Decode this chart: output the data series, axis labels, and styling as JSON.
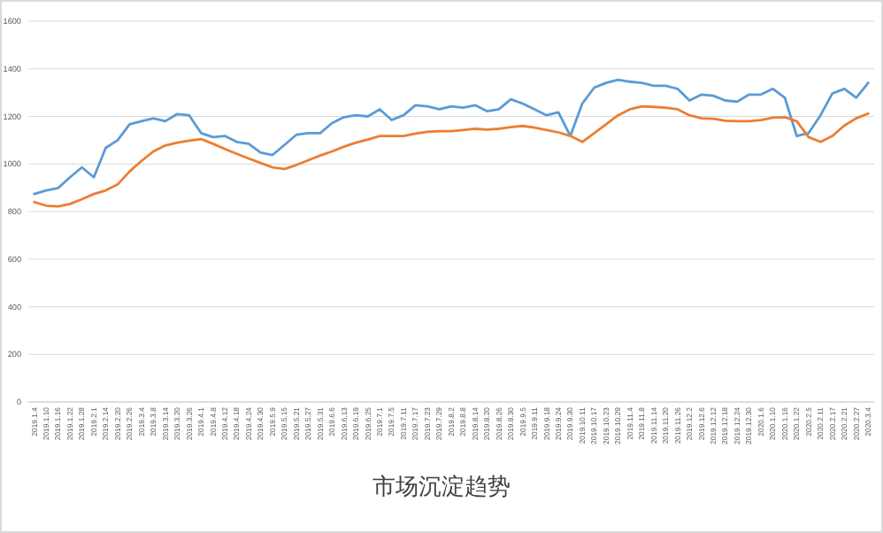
{
  "chart_data": {
    "type": "line",
    "title": "市场沉淀趋势",
    "categories": [
      "2019.1.4",
      "2019.1.10",
      "2019.1.16",
      "2019.1.22",
      "2019.1.28",
      "2019.2.1",
      "2019.2.14",
      "2019.2.20",
      "2019.2.26",
      "2019.3.4",
      "2019.3.8",
      "2019.3.14",
      "2019.3.20",
      "2019.3.26",
      "2019.4.1",
      "2019.4.8",
      "2019.4.12",
      "2019.4.18",
      "2019.4.24",
      "2019.4.30",
      "2019.5.9",
      "2019.5.15",
      "2019.5.21",
      "2019.5.27",
      "2019.5.31",
      "2019.6.6",
      "2019.6.13",
      "2019.6.19",
      "2019.6.25",
      "2019.7.1",
      "2019.7.5",
      "2019.7.11",
      "2019.7.17",
      "2019.7.23",
      "2019.7.29",
      "2019.8.2",
      "2019.8.8",
      "2019.8.14",
      "2019.8.20",
      "2019.8.26",
      "2019.8.30",
      "2019.9.5",
      "2019.9.11",
      "2019.9.18",
      "2019.9.24",
      "2019.9.30",
      "2019.10.11",
      "2019.10.17",
      "2019.10.23",
      "2019.10.29",
      "2019.11.4",
      "2019.11.8",
      "2019.11.14",
      "2019.11.20",
      "2019.11.26",
      "2019.12.2",
      "2019.12.6",
      "2019.12.12",
      "2019.12.18",
      "2019.12.24",
      "2019.12.30",
      "2020.1.6",
      "2020.1.10",
      "2020.1.16",
      "2020.1.22",
      "2020.2.5",
      "2020.2.11",
      "2020.2.17",
      "2020.2.21",
      "2020.2.27",
      "2020.3.4"
    ],
    "series": [
      {
        "color": "#5b9bd5",
        "values": [
          874,
          889,
          899,
          944,
          986,
          944,
          1068,
          1100,
          1167,
          1180,
          1192,
          1180,
          1210,
          1205,
          1130,
          1113,
          1118,
          1093,
          1085,
          1048,
          1038,
          1080,
          1123,
          1130,
          1130,
          1172,
          1197,
          1205,
          1200,
          1230,
          1185,
          1205,
          1247,
          1242,
          1230,
          1242,
          1237,
          1247,
          1222,
          1230,
          1272,
          1254,
          1230,
          1205,
          1217,
          1118,
          1254,
          1321,
          1341,
          1354,
          1346,
          1341,
          1329,
          1329,
          1316,
          1267,
          1292,
          1287,
          1267,
          1262,
          1292,
          1292,
          1316,
          1279,
          1118,
          1130,
          1205,
          1297,
          1316,
          1279,
          1341
        ]
      },
      {
        "color": "#ed7d31",
        "values": [
          840,
          825,
          822,
          832,
          852,
          874,
          889,
          914,
          969,
          1013,
          1053,
          1078,
          1090,
          1098,
          1105,
          1085,
          1063,
          1043,
          1023,
          1004,
          986,
          979,
          996,
          1016,
          1036,
          1053,
          1073,
          1090,
          1103,
          1118,
          1118,
          1118,
          1128,
          1135,
          1138,
          1138,
          1143,
          1148,
          1145,
          1148,
          1155,
          1160,
          1153,
          1143,
          1133,
          1118,
          1093,
          1130,
          1167,
          1205,
          1230,
          1242,
          1240,
          1237,
          1230,
          1205,
          1192,
          1190,
          1182,
          1180,
          1180,
          1185,
          1195,
          1197,
          1180,
          1113,
          1093,
          1118,
          1162,
          1192,
          1212
        ]
      }
    ],
    "ylim": [
      0,
      1600
    ],
    "yticks": [
      0,
      200,
      400,
      600,
      800,
      1000,
      1200,
      1400,
      1600
    ],
    "grid": "y"
  }
}
